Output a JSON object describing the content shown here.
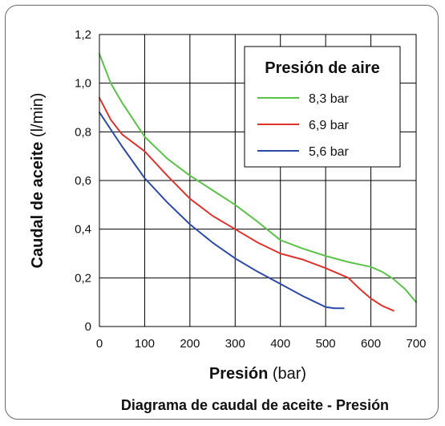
{
  "chart_data": {
    "type": "line",
    "caption": "Diagrama de caudal de aceite - Presión",
    "xlabel_bold": "Presión",
    "xlabel_unit": " (bar)",
    "ylabel_bold": "Caudal de aceite",
    "ylabel_unit": " (l/min)",
    "xlim": [
      0,
      700
    ],
    "ylim": [
      0,
      1.2
    ],
    "xticks": [
      0,
      100,
      200,
      300,
      400,
      500,
      600,
      700
    ],
    "xtick_labels": [
      "0",
      "100",
      "200",
      "300",
      "400",
      "500",
      "600",
      "700"
    ],
    "yticks": [
      0,
      0.2,
      0.4,
      0.6,
      0.8,
      1.0,
      1.2
    ],
    "ytick_labels": [
      "0",
      "0,2",
      "0,4",
      "0,6",
      "0,8",
      "1,0",
      "1,2"
    ],
    "grid": true,
    "legend": {
      "title": "Presión de aire",
      "placement": "top-right"
    },
    "series": [
      {
        "name": "8,3 bar",
        "color": "#5cc34a",
        "x": [
          0,
          25,
          50,
          100,
          150,
          200,
          250,
          300,
          350,
          400,
          450,
          500,
          550,
          600,
          625,
          650,
          675,
          700
        ],
        "y": [
          1.12,
          1.0,
          0.92,
          0.78,
          0.69,
          0.62,
          0.56,
          0.5,
          0.43,
          0.355,
          0.32,
          0.29,
          0.265,
          0.245,
          0.225,
          0.195,
          0.155,
          0.1
        ]
      },
      {
        "name": "6,9 bar",
        "color": "#e0332f",
        "x": [
          0,
          25,
          50,
          100,
          150,
          200,
          250,
          300,
          350,
          400,
          450,
          500,
          550,
          575,
          600,
          625,
          650
        ],
        "y": [
          0.94,
          0.85,
          0.79,
          0.72,
          0.62,
          0.525,
          0.455,
          0.4,
          0.345,
          0.3,
          0.275,
          0.24,
          0.2,
          0.155,
          0.115,
          0.085,
          0.065
        ]
      },
      {
        "name": "5,6 bar",
        "color": "#2e4aa8",
        "x": [
          0,
          50,
          100,
          150,
          200,
          250,
          300,
          350,
          400,
          450,
          500,
          520,
          540
        ],
        "y": [
          0.88,
          0.74,
          0.61,
          0.51,
          0.42,
          0.345,
          0.28,
          0.225,
          0.175,
          0.125,
          0.08,
          0.075,
          0.075
        ]
      }
    ]
  }
}
